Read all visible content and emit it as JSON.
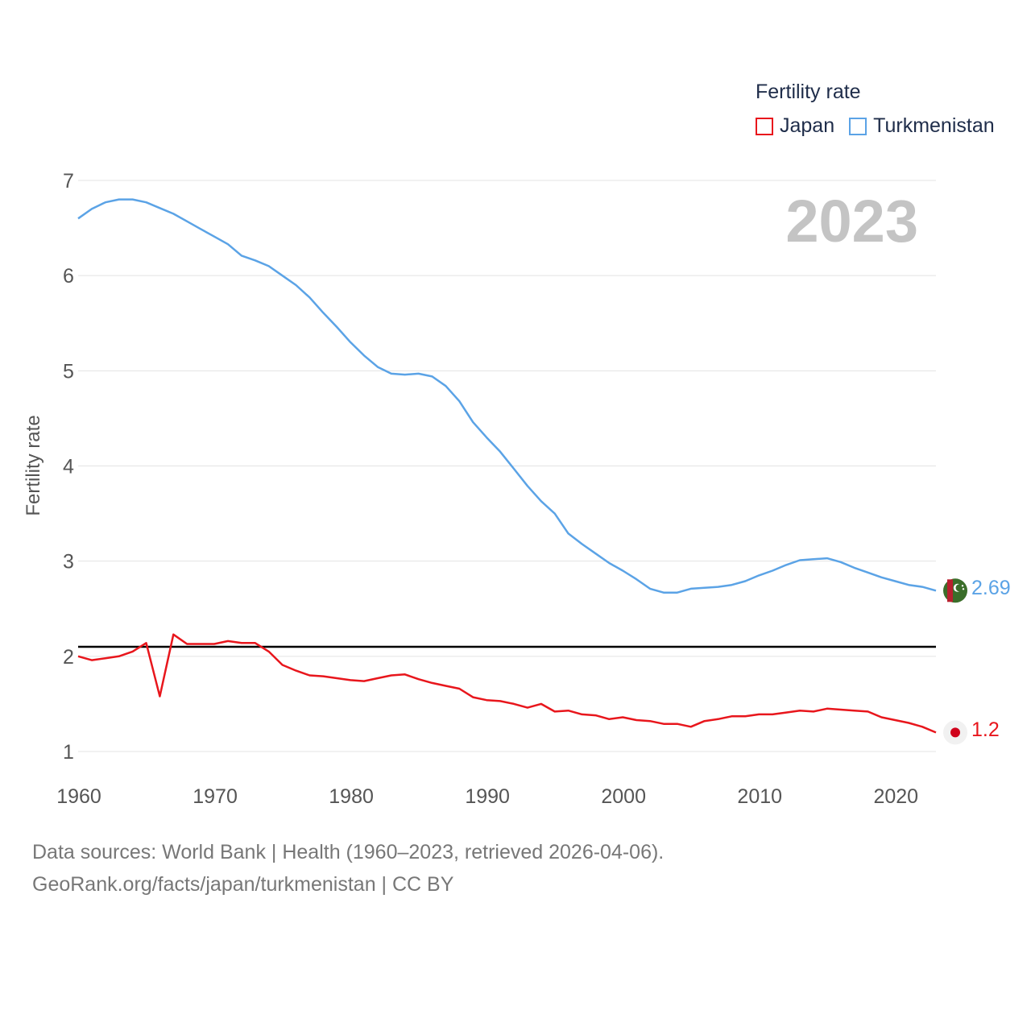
{
  "legend": {
    "title": "Fertility rate",
    "items": [
      {
        "label": "Japan",
        "color": "#e8161c"
      },
      {
        "label": "Turkmenistan",
        "color": "#5ba3e6"
      }
    ]
  },
  "year_label": "2023",
  "source": {
    "line1": "Data sources: World Bank | Health (1960–2023, retrieved 2026-04-06).",
    "line2": "GeoRank.org/facts/japan/turkmenistan | CC BY"
  },
  "end_labels": {
    "turkmenistan": "2.69",
    "japan": "1.2"
  },
  "chart_data": {
    "type": "line",
    "title": "",
    "xlabel": "",
    "ylabel": "Fertility rate",
    "xlim": [
      1960,
      2023
    ],
    "ylim": [
      1,
      7
    ],
    "x_ticks": [
      1960,
      1970,
      1980,
      1990,
      2000,
      2010,
      2020
    ],
    "y_ticks": [
      1,
      2,
      3,
      4,
      5,
      6,
      7
    ],
    "reference_line": {
      "y": 2.1,
      "color": "#000000"
    },
    "x": [
      1960,
      1961,
      1962,
      1963,
      1964,
      1965,
      1966,
      1967,
      1968,
      1969,
      1970,
      1971,
      1972,
      1973,
      1974,
      1975,
      1976,
      1977,
      1978,
      1979,
      1980,
      1981,
      1982,
      1983,
      1984,
      1985,
      1986,
      1987,
      1988,
      1989,
      1990,
      1991,
      1992,
      1993,
      1994,
      1995,
      1996,
      1997,
      1998,
      1999,
      2000,
      2001,
      2002,
      2003,
      2004,
      2005,
      2006,
      2007,
      2008,
      2009,
      2010,
      2011,
      2012,
      2013,
      2014,
      2015,
      2016,
      2017,
      2018,
      2019,
      2020,
      2021,
      2022,
      2023
    ],
    "series": [
      {
        "name": "Japan",
        "color": "#e8161c",
        "values": [
          2.0,
          1.96,
          1.98,
          2.0,
          2.05,
          2.14,
          1.58,
          2.23,
          2.13,
          2.13,
          2.13,
          2.16,
          2.14,
          2.14,
          2.05,
          1.91,
          1.85,
          1.8,
          1.79,
          1.77,
          1.75,
          1.74,
          1.77,
          1.8,
          1.81,
          1.76,
          1.72,
          1.69,
          1.66,
          1.57,
          1.54,
          1.53,
          1.5,
          1.46,
          1.5,
          1.42,
          1.43,
          1.39,
          1.38,
          1.34,
          1.36,
          1.33,
          1.32,
          1.29,
          1.29,
          1.26,
          1.32,
          1.34,
          1.37,
          1.37,
          1.39,
          1.39,
          1.41,
          1.43,
          1.42,
          1.45,
          1.44,
          1.43,
          1.42,
          1.36,
          1.33,
          1.3,
          1.26,
          1.2
        ]
      },
      {
        "name": "Turkmenistan",
        "color": "#5ba3e6",
        "values": [
          6.6,
          6.7,
          6.77,
          6.8,
          6.8,
          6.77,
          6.71,
          6.65,
          6.57,
          6.49,
          6.41,
          6.33,
          6.21,
          6.16,
          6.1,
          6.0,
          5.9,
          5.77,
          5.61,
          5.46,
          5.3,
          5.16,
          5.04,
          4.97,
          4.96,
          4.97,
          4.94,
          4.84,
          4.68,
          4.46,
          4.3,
          4.15,
          3.97,
          3.79,
          3.63,
          3.5,
          3.29,
          3.18,
          3.08,
          2.98,
          2.9,
          2.81,
          2.71,
          2.67,
          2.67,
          2.71,
          2.72,
          2.73,
          2.75,
          2.79,
          2.85,
          2.9,
          2.96,
          3.01,
          3.02,
          3.03,
          2.99,
          2.93,
          2.88,
          2.83,
          2.79,
          2.75,
          2.73,
          2.69
        ]
      }
    ]
  }
}
